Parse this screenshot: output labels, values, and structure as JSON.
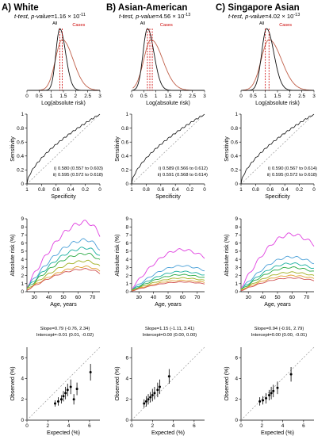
{
  "columns": [
    {
      "title": "A) White",
      "subtitle_prefix": "t-test, p-value=",
      "p_value": "1.16 × 10",
      "p_exp": "-11",
      "density": {
        "xlabel": "Log(absolute risk)",
        "xticks": [
          "0",
          "0.5",
          "1",
          "1.5",
          "2",
          "2.5",
          "3"
        ],
        "legend": [
          "All",
          "Cases"
        ],
        "all_peak": 1.35,
        "all_sd": 0.16,
        "cases_peak": 1.45,
        "cases_sd": 0.28,
        "vlines": [
          1.35,
          1.45
        ]
      },
      "roc": {
        "xlabel": "Specificity",
        "ylabel": "Sensitivity",
        "xticks": [
          "1",
          "0.8",
          "0.6",
          "0.4",
          "0.2",
          "0"
        ],
        "yticks": [
          "0",
          "0.2",
          "0.4",
          "0.6",
          "0.8",
          "1"
        ],
        "auc1": "i) 0.580 (0.557 to 0.603)",
        "auc2": "ii) 0.595 (0.572 to 0.618)",
        "auc_value": 0.59
      },
      "risk": {
        "xlabel": "Age, years",
        "ylabel": "Absolute risk (%)",
        "xticks": [
          "30",
          "40",
          "50",
          "60",
          "70"
        ],
        "yticks": [
          "0",
          "1",
          "2",
          "3",
          "4",
          "5",
          "6",
          "7",
          "8",
          "9"
        ],
        "curves": [
          {
            "color": "#e040e0",
            "peak": 8.6
          },
          {
            "color": "#4aa0d8",
            "peak": 6.4
          },
          {
            "color": "#1bb0a0",
            "peak": 5.4
          },
          {
            "color": "#2aaa44",
            "peak": 4.7
          },
          {
            "color": "#a0b020",
            "peak": 3.8
          },
          {
            "color": "#e0a030",
            "peak": 3.1
          },
          {
            "color": "#d05050",
            "peak": 2.8
          }
        ],
        "peak_age": 66
      },
      "calib": {
        "xlabel": "Expected (%)",
        "ylabel": "Observed (%)",
        "xticks": [
          "0",
          "2",
          "4",
          "6"
        ],
        "yticks": [
          "0",
          "2",
          "4",
          "6"
        ],
        "slope": "Slope=0.79 (-0.76, 2.34)",
        "intercept": "Intercept=-0.01 (0.01, -0.02)",
        "points": [
          {
            "x": 2.7,
            "y": 1.6,
            "lo": 1.3,
            "hi": 1.9
          },
          {
            "x": 3.0,
            "y": 1.8,
            "lo": 1.4,
            "hi": 2.2
          },
          {
            "x": 3.3,
            "y": 2.0,
            "lo": 1.6,
            "hi": 2.4
          },
          {
            "x": 3.5,
            "y": 2.3,
            "lo": 1.8,
            "hi": 2.8
          },
          {
            "x": 3.7,
            "y": 2.6,
            "lo": 2.0,
            "hi": 3.2
          },
          {
            "x": 3.9,
            "y": 2.9,
            "lo": 2.3,
            "hi": 3.5
          },
          {
            "x": 4.2,
            "y": 3.2,
            "lo": 2.5,
            "hi": 3.9
          },
          {
            "x": 4.5,
            "y": 2.0,
            "lo": 1.5,
            "hi": 2.5
          },
          {
            "x": 4.8,
            "y": 3.0,
            "lo": 2.4,
            "hi": 3.6
          },
          {
            "x": 6.1,
            "y": 4.6,
            "lo": 3.8,
            "hi": 5.4
          }
        ]
      }
    },
    {
      "title": "B) Asian-American",
      "subtitle_prefix": "t-test, p-value=",
      "p_value": "4.56 × 10",
      "p_exp": "-13",
      "density": {
        "xlabel": "Log(absolute risk)",
        "xticks": [
          "0",
          "0.5",
          "1",
          "1.5",
          "2",
          "2.5",
          "3"
        ],
        "legend": [
          "All",
          "Cases"
        ],
        "all_peak": 0.65,
        "all_sd": 0.18,
        "cases_peak": 0.8,
        "cases_sd": 0.3,
        "vlines": [
          0.65,
          0.75,
          0.85
        ]
      },
      "roc": {
        "xlabel": "Specificity",
        "ylabel": "Sensitivity",
        "xticks": [
          "1",
          "0.8",
          "0.6",
          "0.4",
          "0.2",
          "0"
        ],
        "yticks": [
          "0",
          "0.2",
          "0.4",
          "0.6",
          "0.8",
          "1"
        ],
        "auc1": "i) 0.589 (0.566 to 0.612)",
        "auc2": "ii) 0.591 (0.568 to 0.614)",
        "auc_value": 0.59
      },
      "risk": {
        "xlabel": "Age, years",
        "ylabel": "Absolute risk (%)",
        "xticks": [
          "30",
          "40",
          "50",
          "60",
          "70"
        ],
        "yticks": [
          "0",
          "1",
          "2",
          "3",
          "4",
          "5",
          "6",
          "7",
          "8",
          "9"
        ],
        "curves": [
          {
            "color": "#e040e0",
            "peak": 5.2
          },
          {
            "color": "#4aa0d8",
            "peak": 3.2
          },
          {
            "color": "#1bb0a0",
            "peak": 2.5
          },
          {
            "color": "#2aaa44",
            "peak": 2.1
          },
          {
            "color": "#a0b020",
            "peak": 1.7
          },
          {
            "color": "#e0a030",
            "peak": 1.4
          },
          {
            "color": "#d05050",
            "peak": 1.2
          }
        ],
        "peak_age": 60
      },
      "calib": {
        "xlabel": "Expected (%)",
        "ylabel": "Observed (%)",
        "xticks": [
          "0",
          "2",
          "4",
          "6"
        ],
        "yticks": [
          "0",
          "2",
          "4",
          "6"
        ],
        "slope": "Slope=1.15 (-1.11, 3.41)",
        "intercept": "Intercept=0.00 (0.00, 0.00)",
        "points": [
          {
            "x": 1.2,
            "y": 1.6,
            "lo": 1.2,
            "hi": 2.0
          },
          {
            "x": 1.4,
            "y": 1.8,
            "lo": 1.3,
            "hi": 2.3
          },
          {
            "x": 1.6,
            "y": 2.0,
            "lo": 1.5,
            "hi": 2.5
          },
          {
            "x": 1.8,
            "y": 2.2,
            "lo": 1.7,
            "hi": 2.7
          },
          {
            "x": 2.0,
            "y": 2.4,
            "lo": 1.8,
            "hi": 3.0
          },
          {
            "x": 2.2,
            "y": 2.6,
            "lo": 2.0,
            "hi": 3.2
          },
          {
            "x": 2.5,
            "y": 2.9,
            "lo": 2.2,
            "hi": 3.6
          },
          {
            "x": 2.7,
            "y": 3.2,
            "lo": 2.5,
            "hi": 3.9
          },
          {
            "x": 3.6,
            "y": 4.2,
            "lo": 3.5,
            "hi": 4.9
          }
        ]
      }
    },
    {
      "title": "C) Singapore Asian",
      "subtitle_prefix": "t-test, p-value=",
      "p_value": "4.02 × 10",
      "p_exp": "-13",
      "density": {
        "xlabel": "Log(absolute risk)",
        "xticks": [
          "0",
          "0.5",
          "1",
          "1.5",
          "2",
          "2.5",
          "3"
        ],
        "legend": [
          "All",
          "Cases"
        ],
        "all_peak": 1.05,
        "all_sd": 0.2,
        "cases_peak": 1.15,
        "cases_sd": 0.32,
        "vlines": [
          1.0,
          1.15
        ]
      },
      "roc": {
        "xlabel": "Specificity",
        "ylabel": "Sensitivity",
        "xticks": [
          "1",
          "0.8",
          "0.6",
          "0.4",
          "0.2",
          "0"
        ],
        "yticks": [
          "0",
          "0.2",
          "0.4",
          "0.6",
          "0.8",
          "1"
        ],
        "auc1": "i) 0.590 (0.567 to 0.614)",
        "auc2": "ii) 0.595 (0.572 to 0.618)",
        "auc_value": 0.59
      },
      "risk": {
        "xlabel": "Age, years",
        "ylabel": "Absolute risk (%)",
        "xticks": [
          "30",
          "40",
          "50",
          "60",
          "70"
        ],
        "yticks": [
          "0",
          "1",
          "2",
          "3",
          "4",
          "5",
          "6",
          "7",
          "8",
          "9"
        ],
        "curves": [
          {
            "color": "#e040e0",
            "peak": 7.1
          },
          {
            "color": "#4aa0d8",
            "peak": 4.3
          },
          {
            "color": "#1bb0a0",
            "peak": 3.5
          },
          {
            "color": "#2aaa44",
            "peak": 3.0
          },
          {
            "color": "#a0b020",
            "peak": 2.4
          },
          {
            "color": "#e0a030",
            "peak": 2.0
          },
          {
            "color": "#d05050",
            "peak": 1.7
          }
        ],
        "peak_age": 60
      },
      "calib": {
        "xlabel": "Expected (%)",
        "ylabel": "Observed (%)",
        "xticks": [
          "0",
          "2",
          "4",
          "6"
        ],
        "yticks": [
          "0",
          "2",
          "4",
          "6"
        ],
        "slope": "Slope=0.94 (-0.91, 2.79)",
        "intercept": "Intercept=0.00 (0.00, -0.01)",
        "points": [
          {
            "x": 1.8,
            "y": 1.8,
            "lo": 1.4,
            "hi": 2.2
          },
          {
            "x": 2.1,
            "y": 1.9,
            "lo": 1.5,
            "hi": 2.3
          },
          {
            "x": 2.4,
            "y": 2.1,
            "lo": 1.6,
            "hi": 2.6
          },
          {
            "x": 2.7,
            "y": 2.4,
            "lo": 1.9,
            "hi": 2.9
          },
          {
            "x": 2.9,
            "y": 2.6,
            "lo": 2.0,
            "hi": 3.2
          },
          {
            "x": 3.1,
            "y": 2.8,
            "lo": 2.2,
            "hi": 3.4
          },
          {
            "x": 3.5,
            "y": 3.1,
            "lo": 2.5,
            "hi": 3.7
          },
          {
            "x": 4.8,
            "y": 4.4,
            "lo": 3.7,
            "hi": 5.1
          }
        ]
      }
    }
  ],
  "colors": {
    "all_line": "#111111",
    "cases_line": "#c0604a",
    "vline": "#cc0000",
    "roc_line": "#111111",
    "diag": "#999999",
    "cases_label": "#cc0000"
  },
  "chart_data": [
    {
      "type": "line",
      "panel": "density",
      "title": "A) White",
      "xlabel": "Log(absolute risk)",
      "xlim": [
        0,
        3
      ]
    },
    {
      "type": "line",
      "panel": "roc",
      "xlabel": "Specificity",
      "ylabel": "Sensitivity",
      "xlim": [
        1,
        0
      ],
      "ylim": [
        0,
        1
      ]
    },
    {
      "type": "line",
      "panel": "risk",
      "xlabel": "Age, years",
      "ylabel": "Absolute risk (%)",
      "xlim": [
        25,
        75
      ],
      "ylim": [
        0,
        9
      ]
    },
    {
      "type": "scatter",
      "panel": "calibration",
      "xlabel": "Expected (%)",
      "ylabel": "Observed (%)",
      "xlim": [
        0,
        7
      ],
      "ylim": [
        0,
        7
      ]
    }
  ]
}
